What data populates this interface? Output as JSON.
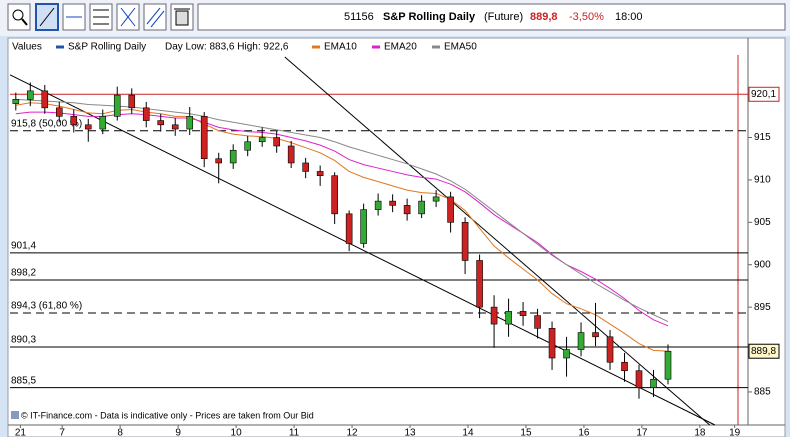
{
  "header": {
    "id": "51156",
    "name": "S&P Rolling Daily",
    "kind": "(Future)",
    "price": "889,8",
    "change": "-3,50%",
    "time": "18:00"
  },
  "chart_data": {
    "type": "candlestick",
    "legend_title": "Values",
    "info": "Day Low: 883,6 High: 922,6",
    "footer": "© IT-Finance.com - Data is indicative only - Prices are taken from Our Bid",
    "xlim": [
      -0.9,
      11.83
    ],
    "ylim": [
      881.1,
      926.5
    ],
    "xticks": [
      {
        "value": -0.72,
        "label": "21"
      },
      {
        "value": 0,
        "label": "7"
      },
      {
        "value": 1,
        "label": "8"
      },
      {
        "value": 2,
        "label": "9"
      },
      {
        "value": 3,
        "label": "10"
      },
      {
        "value": 4,
        "label": "11"
      },
      {
        "value": 5,
        "label": "12"
      },
      {
        "value": 6,
        "label": "13"
      },
      {
        "value": 7,
        "label": "14"
      },
      {
        "value": 8,
        "label": "15"
      },
      {
        "value": 9,
        "label": "16"
      },
      {
        "value": 10,
        "label": "17"
      },
      {
        "value": 11,
        "label": "18"
      },
      {
        "value": 11.6,
        "label": "19"
      }
    ],
    "yticks": [
      885,
      890,
      895,
      900,
      905,
      910,
      915,
      920
    ],
    "grid": false,
    "x": [
      -0.8,
      -0.55,
      -0.3,
      -0.05,
      0.2,
      0.45,
      0.7,
      0.95,
      1.2,
      1.45,
      1.7,
      1.95,
      2.2,
      2.45,
      2.7,
      2.95,
      3.2,
      3.45,
      3.7,
      3.95,
      4.2,
      4.45,
      4.7,
      4.95,
      5.2,
      5.45,
      5.7,
      5.95,
      6.2,
      6.45,
      6.7,
      6.95,
      7.2,
      7.45,
      7.7,
      7.95,
      8.2,
      8.45,
      8.7,
      8.95,
      9.2,
      9.45,
      9.7,
      9.95,
      10.2,
      10.45
    ],
    "series": [
      {
        "name": "S&P Rolling Daily",
        "color": "#2255aa",
        "up_color": "#33aa33",
        "down_color": "#cc2222",
        "open": [
          919,
          919.5,
          920.5,
          918.5,
          917.5,
          916.5,
          916,
          917.5,
          920,
          918.5,
          917,
          916.5,
          916,
          917.5,
          912.5,
          912,
          913.5,
          914.5,
          915,
          914,
          912,
          911,
          910.5,
          906,
          902.5,
          906.5,
          907.5,
          907,
          906,
          907.5,
          908,
          905,
          900.5,
          895,
          893,
          894.5,
          894,
          892.5,
          889,
          890,
          892,
          891.5,
          888.5,
          887.5,
          885.5,
          886.5
        ],
        "high": [
          920.3,
          921.5,
          921.2,
          919.2,
          918.3,
          917.2,
          918.3,
          921,
          920.8,
          919.2,
          917.8,
          917.3,
          918.6,
          918,
          913.2,
          914.2,
          915.2,
          916.2,
          915.8,
          914.6,
          912.6,
          911.7,
          910.9,
          906.4,
          907.2,
          908.4,
          908.3,
          907.8,
          908.2,
          908.8,
          908.6,
          905.6,
          901.2,
          896.4,
          896,
          895.6,
          894.8,
          893.3,
          891.5,
          893.2,
          895.5,
          892.3,
          889.6,
          888.2,
          887.6,
          890.6
        ],
        "low": [
          918.2,
          918.7,
          917.8,
          916.8,
          915.6,
          914.5,
          915.4,
          917,
          917.8,
          916.2,
          915.7,
          915.2,
          915.3,
          911.5,
          909.6,
          911.3,
          912.8,
          913.9,
          913.2,
          911.4,
          910.2,
          909.3,
          904.8,
          901.6,
          902,
          905.8,
          906.2,
          905.2,
          905.5,
          906.8,
          903.8,
          898.9,
          893.7,
          890.2,
          891.5,
          892.8,
          891.3,
          887.6,
          886.8,
          889.2,
          890.4,
          887.6,
          886.2,
          884.2,
          884.4,
          885.9
        ],
        "close": [
          919.5,
          920.5,
          918.5,
          917.5,
          916.5,
          916,
          917.5,
          920,
          918.5,
          917,
          916.5,
          916,
          917.5,
          912.5,
          912,
          913.5,
          914.5,
          915,
          914,
          912,
          911,
          910.5,
          906,
          902.5,
          906.5,
          907.5,
          907,
          906,
          907.5,
          908,
          905,
          900.5,
          895,
          893,
          894.5,
          894,
          892.5,
          889,
          890,
          892,
          891.5,
          888.5,
          887.5,
          885.5,
          886.5,
          889.8
        ]
      }
    ],
    "overlays": [
      {
        "name": "EMA10",
        "color": "#e07820",
        "values": [
          918.8,
          919.1,
          919.0,
          918.7,
          918.3,
          917.9,
          917.8,
          918.2,
          918.3,
          918.0,
          917.8,
          917.5,
          917.5,
          916.6,
          915.8,
          915.4,
          915.2,
          915.1,
          914.9,
          914.4,
          913.8,
          913.2,
          912.3,
          911.0,
          910.3,
          909.8,
          909.3,
          908.8,
          908.5,
          908.4,
          907.7,
          906.4,
          904.3,
          902.2,
          900.8,
          899.5,
          898.2,
          896.6,
          895.4,
          894.8,
          894.1,
          893.0,
          891.9,
          890.7,
          889.9,
          889.8
        ]
      },
      {
        "name": "EMA20",
        "color": "#dd22cc",
        "values": [
          917.8,
          918.0,
          918.0,
          917.9,
          917.7,
          917.5,
          917.5,
          917.7,
          917.8,
          917.7,
          917.5,
          917.3,
          917.3,
          916.8,
          916.2,
          915.9,
          915.7,
          915.6,
          915.4,
          915.0,
          914.6,
          914.1,
          913.4,
          912.4,
          911.8,
          911.4,
          911.0,
          910.6,
          910.3,
          910.1,
          909.5,
          908.6,
          907.3,
          905.9,
          904.8,
          903.7,
          902.6,
          901.2,
          900.0,
          899.2,
          898.3,
          897.2,
          896.0,
          894.6,
          893.5,
          892.8
        ]
      },
      {
        "name": "EMA50",
        "color": "#888888",
        "values": [
          919.5,
          919.4,
          919.3,
          919.2,
          919.1,
          918.9,
          918.8,
          918.7,
          918.6,
          918.4,
          918.2,
          918.0,
          917.8,
          917.5,
          917.1,
          916.8,
          916.5,
          916.2,
          915.9,
          915.6,
          915.3,
          915.0,
          914.5,
          913.9,
          913.4,
          912.9,
          912.4,
          911.9,
          911.3,
          910.7,
          909.9,
          908.9,
          907.6,
          906.3,
          905.0,
          903.7,
          902.4,
          901.1,
          900.0,
          898.9,
          897.8,
          896.8,
          895.8,
          894.9,
          894.1,
          893.3
        ]
      }
    ],
    "trendlines": [
      {
        "color": "#000000",
        "x": [
          -0.9,
          11.26
        ],
        "y": [
          922.4,
          881.1
        ]
      },
      {
        "color": "#000000",
        "x": [
          3.84,
          11.17
        ],
        "y": [
          924.5,
          881.1
        ]
      }
    ],
    "levels": [
      {
        "value": 920.1,
        "label": "920,1",
        "placement": "axis",
        "color": "#cc2222",
        "style": "solid"
      },
      {
        "value": 915.8,
        "label": "915,8 (50,00 %)",
        "placement": "left",
        "color": "#000000",
        "style": "dashed"
      },
      {
        "value": 901.4,
        "label": "901,4",
        "placement": "left",
        "color": "#000000",
        "style": "solid"
      },
      {
        "value": 898.2,
        "label": "898,2",
        "placement": "left",
        "color": "#000000",
        "style": "solid"
      },
      {
        "value": 894.3,
        "label": "894,3 (61,80 %)",
        "placement": "left",
        "color": "#000000",
        "style": "dashed"
      },
      {
        "value": 890.3,
        "label": "890,3",
        "placement": "left",
        "color": "#000000",
        "style": "solid"
      },
      {
        "value": 885.5,
        "label": "885,5",
        "placement": "left",
        "color": "#000000",
        "style": "solid"
      }
    ],
    "last_price": {
      "value": 889.8,
      "label": "889,8"
    }
  }
}
